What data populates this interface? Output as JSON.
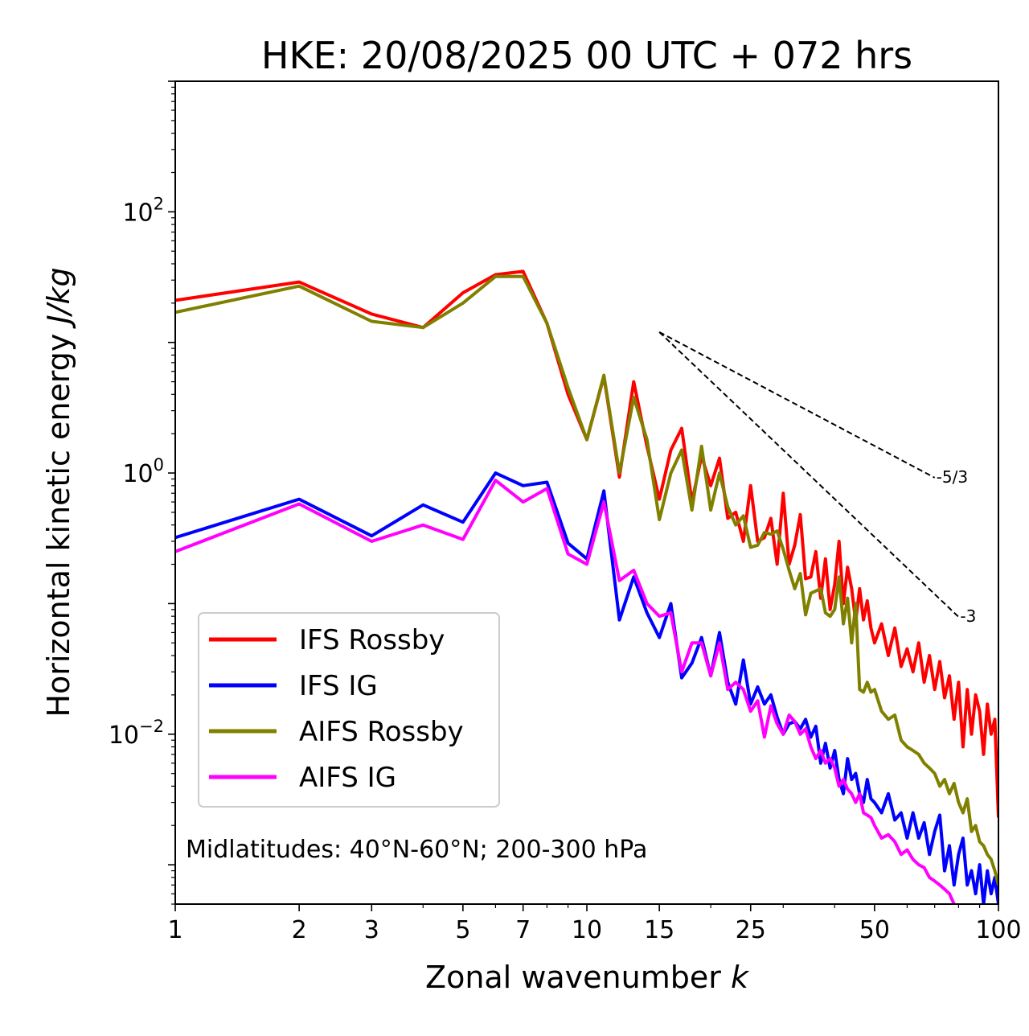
{
  "chart_data": {
    "type": "line",
    "title": "HKE: 20/08/2025 00 UTC + 072 hrs",
    "xlabel": "Zonal wavenumber",
    "xlabel_var": "k",
    "ylabel": "Horizontal kinetic energy",
    "ylabel_unit": "J/kg",
    "xscale": "log",
    "yscale": "log",
    "xlim": [
      1,
      100
    ],
    "ylim": [
      0.0005,
      1000
    ],
    "x_ticks": [
      1,
      2,
      3,
      5,
      7,
      10,
      15,
      25,
      50,
      100
    ],
    "x_tick_labels": [
      "1",
      "2",
      "3",
      "5",
      "7",
      "10",
      "15",
      "25",
      "50",
      "100"
    ],
    "y_ticks": [
      {
        "value": 0.01,
        "base": "10",
        "exp": "−2"
      },
      {
        "value": 1,
        "base": "10",
        "exp": "0"
      },
      {
        "value": 100,
        "base": "10",
        "exp": "2"
      }
    ],
    "annotation": "Midlatitudes: 40°N-60°N; 200-300 hPa",
    "legend_position": "lower-left",
    "reference_lines": [
      {
        "label": "-5/3",
        "slope": -1.6667,
        "x_start": 15,
        "y_start": 12.0,
        "x_end": 70
      },
      {
        "label": "-3",
        "slope": -3,
        "x_start": 15,
        "y_start": 12.0,
        "x_end": 80
      }
    ],
    "series": [
      {
        "name": "IFS Rossby",
        "color": "#ff0000",
        "x": [
          1,
          2,
          3,
          4,
          5,
          6,
          7,
          8,
          9,
          10,
          11,
          12,
          13,
          14,
          15,
          16,
          17,
          18,
          19,
          20,
          21,
          22,
          23,
          24,
          25,
          26,
          27,
          28,
          29,
          30,
          31,
          32,
          33,
          34,
          35,
          36,
          37,
          38,
          39,
          40,
          41,
          42,
          43,
          44,
          45,
          46,
          47,
          48,
          49,
          50,
          52,
          54,
          56,
          58,
          60,
          62,
          64,
          66,
          68,
          70,
          72,
          74,
          76,
          78,
          80,
          82,
          84,
          86,
          88,
          90,
          92,
          94,
          96,
          98,
          100
        ],
        "values": [
          21,
          29,
          16.5,
          13,
          24,
          33,
          35,
          14,
          4.0,
          1.8,
          5.5,
          0.93,
          5.0,
          1.6,
          0.63,
          1.5,
          2.2,
          0.6,
          1.35,
          0.8,
          1.3,
          0.45,
          0.5,
          0.3,
          0.8,
          0.3,
          0.32,
          0.45,
          0.2,
          0.7,
          0.2,
          0.28,
          0.48,
          0.155,
          0.16,
          0.25,
          0.11,
          0.22,
          0.09,
          0.14,
          0.3,
          0.1,
          0.19,
          0.13,
          0.073,
          0.13,
          0.075,
          0.105,
          0.065,
          0.05,
          0.07,
          0.04,
          0.065,
          0.033,
          0.045,
          0.03,
          0.05,
          0.025,
          0.04,
          0.022,
          0.036,
          0.019,
          0.028,
          0.013,
          0.025,
          0.008,
          0.022,
          0.01,
          0.02,
          0.015,
          0.007,
          0.017,
          0.01,
          0.013,
          0.0023
        ]
      },
      {
        "name": "IFS IG",
        "color": "#0000ff",
        "x": [
          1,
          2,
          3,
          4,
          5,
          6,
          7,
          8,
          9,
          10,
          11,
          12,
          13,
          14,
          15,
          16,
          17,
          18,
          19,
          20,
          21,
          22,
          23,
          24,
          25,
          26,
          27,
          28,
          29,
          30,
          31,
          32,
          33,
          34,
          35,
          36,
          37,
          38,
          39,
          40,
          41,
          42,
          43,
          44,
          45,
          46,
          47,
          48,
          49,
          50,
          52,
          54,
          56,
          58,
          60,
          62,
          64,
          66,
          68,
          70,
          72,
          74,
          76,
          78,
          80,
          82,
          84,
          86,
          88,
          90,
          92,
          94,
          96,
          98,
          100
        ],
        "values": [
          0.32,
          0.63,
          0.33,
          0.57,
          0.42,
          1.0,
          0.8,
          0.85,
          0.29,
          0.22,
          0.73,
          0.075,
          0.16,
          0.085,
          0.055,
          0.1,
          0.027,
          0.035,
          0.055,
          0.028,
          0.06,
          0.025,
          0.017,
          0.037,
          0.017,
          0.023,
          0.017,
          0.02,
          0.0135,
          0.01,
          0.012,
          0.0125,
          0.011,
          0.013,
          0.0095,
          0.0115,
          0.006,
          0.0085,
          0.0055,
          0.0075,
          0.0045,
          0.0035,
          0.0065,
          0.0045,
          0.005,
          0.0035,
          0.003,
          0.0045,
          0.0032,
          0.003,
          0.0025,
          0.0035,
          0.0022,
          0.0025,
          0.0016,
          0.0025,
          0.0016,
          0.0021,
          0.0012,
          0.0018,
          0.0024,
          0.0009,
          0.0014,
          0.0007,
          0.0012,
          0.0016,
          0.0007,
          0.0009,
          0.0006,
          0.001,
          0.0005,
          0.0009,
          0.0006,
          0.0008,
          0.0005
        ]
      },
      {
        "name": "AIFS Rossby",
        "color": "#808000",
        "x": [
          1,
          2,
          3,
          4,
          5,
          6,
          7,
          8,
          9,
          10,
          11,
          12,
          13,
          14,
          15,
          16,
          17,
          18,
          19,
          20,
          21,
          22,
          23,
          24,
          25,
          26,
          27,
          28,
          29,
          30,
          31,
          32,
          33,
          34,
          35,
          36,
          37,
          38,
          39,
          40,
          41,
          42,
          43,
          44,
          45,
          46,
          47,
          48,
          49,
          50,
          52,
          54,
          56,
          58,
          60,
          62,
          64,
          66,
          68,
          70,
          72,
          74,
          76,
          78,
          80,
          82,
          84,
          86,
          88,
          90,
          92,
          94,
          96,
          98,
          100
        ],
        "values": [
          17,
          27,
          14.5,
          13,
          20,
          32,
          32,
          14,
          4.5,
          1.8,
          5.6,
          1.0,
          3.8,
          1.8,
          0.44,
          1.0,
          1.5,
          0.52,
          1.6,
          0.52,
          1.0,
          0.55,
          0.4,
          0.47,
          0.27,
          0.28,
          0.35,
          0.34,
          0.36,
          0.26,
          0.18,
          0.13,
          0.17,
          0.082,
          0.12,
          0.125,
          0.13,
          0.085,
          0.08,
          0.09,
          0.16,
          0.07,
          0.11,
          0.05,
          0.1,
          0.022,
          0.021,
          0.025,
          0.021,
          0.022,
          0.015,
          0.013,
          0.014,
          0.009,
          0.008,
          0.0075,
          0.007,
          0.006,
          0.0055,
          0.005,
          0.004,
          0.0045,
          0.0035,
          0.0042,
          0.003,
          0.0025,
          0.0032,
          0.0018,
          0.002,
          0.0015,
          0.0014,
          0.0012,
          0.0011,
          0.0009,
          0.0007
        ]
      },
      {
        "name": "AIFS IG",
        "color": "#ff00ff",
        "x": [
          1,
          2,
          3,
          4,
          5,
          6,
          7,
          8,
          9,
          10,
          11,
          12,
          13,
          14,
          15,
          16,
          17,
          18,
          19,
          20,
          21,
          22,
          23,
          24,
          25,
          26,
          27,
          28,
          29,
          30,
          31,
          32,
          33,
          34,
          35,
          36,
          37,
          38,
          39,
          40,
          41,
          42,
          43,
          44,
          45,
          46,
          47,
          48,
          49,
          50,
          52,
          54,
          56,
          58,
          60,
          62,
          64,
          66,
          68,
          70,
          72,
          74,
          76,
          78
        ],
        "values": [
          0.25,
          0.58,
          0.3,
          0.4,
          0.31,
          0.88,
          0.6,
          0.76,
          0.24,
          0.2,
          0.6,
          0.15,
          0.18,
          0.1,
          0.08,
          0.085,
          0.03,
          0.05,
          0.05,
          0.028,
          0.05,
          0.022,
          0.025,
          0.022,
          0.015,
          0.018,
          0.0095,
          0.0165,
          0.012,
          0.01,
          0.014,
          0.0125,
          0.01,
          0.011,
          0.008,
          0.0065,
          0.0075,
          0.006,
          0.0065,
          0.0055,
          0.004,
          0.0045,
          0.0038,
          0.0035,
          0.003,
          0.0035,
          0.0025,
          0.0024,
          0.0023,
          0.002,
          0.0016,
          0.0017,
          0.0015,
          0.0012,
          0.0013,
          0.0011,
          0.001,
          0.00095,
          0.0008,
          0.00075,
          0.0007,
          0.00065,
          0.0006,
          0.0005
        ]
      }
    ]
  }
}
